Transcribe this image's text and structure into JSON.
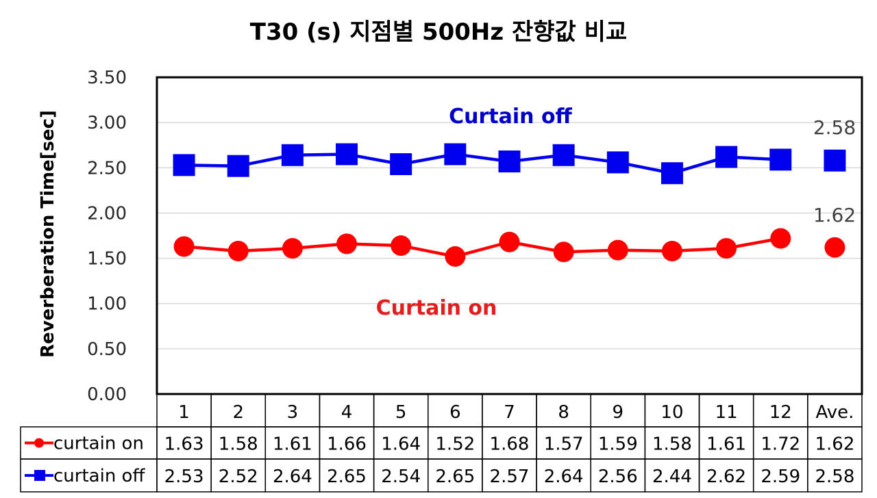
{
  "chart_data": {
    "type": "line",
    "title": "T30 (s) 지점별 500Hz 잔향값 비교",
    "ylabel": "Reverberation Time[sec]",
    "xlabel": "",
    "ylim": [
      0,
      3.5
    ],
    "yticks": [
      "0.00",
      "0.50",
      "1.00",
      "1.50",
      "2.00",
      "2.50",
      "3.00",
      "3.50"
    ],
    "grid": true,
    "categories": [
      "1",
      "2",
      "3",
      "4",
      "5",
      "6",
      "7",
      "8",
      "9",
      "10",
      "11",
      "12",
      "Ave."
    ],
    "series": [
      {
        "name": "curtain on",
        "marker": "circle",
        "color": "#ff0000",
        "values": [
          1.63,
          1.58,
          1.61,
          1.66,
          1.64,
          1.52,
          1.68,
          1.57,
          1.59,
          1.58,
          1.61,
          1.72,
          1.62
        ],
        "table_values": [
          "1.63",
          "1.58",
          "1.61",
          "1.66",
          "1.64",
          "1.52",
          "1.68",
          "1.57",
          "1.59",
          "1.58",
          "1.61",
          "1.72",
          "1.62"
        ]
      },
      {
        "name": "curtain off",
        "marker": "square",
        "color": "#0000ee",
        "values": [
          2.53,
          2.52,
          2.64,
          2.65,
          2.54,
          2.65,
          2.57,
          2.64,
          2.56,
          2.44,
          2.62,
          2.59,
          2.58
        ],
        "table_values": [
          "2.53",
          "2.52",
          "2.64",
          "2.65",
          "2.54",
          "2.65",
          "2.57",
          "2.64",
          "2.56",
          "2.44",
          "2.62",
          "2.59",
          "2.58"
        ]
      }
    ],
    "annotations": {
      "curtain_off": "Curtain off",
      "curtain_on": "Curtain on",
      "avg_off": "2.58",
      "avg_on": "1.62"
    }
  }
}
